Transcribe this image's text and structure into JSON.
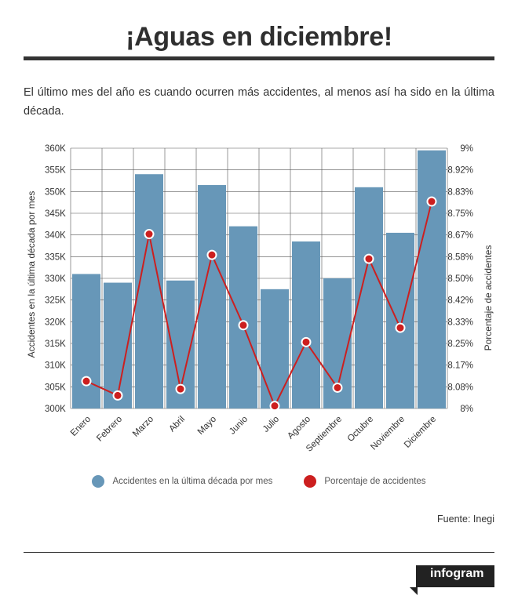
{
  "title": "¡Aguas en diciembre!",
  "subtitle": "El último mes del año es cuando ocurren más accidentes, al menos así ha sido en la última década.",
  "source": "Fuente: Inegi",
  "brand": "infogram",
  "colors": {
    "bar": "#6797b8",
    "line": "#cc1f1f",
    "grid": "#555555",
    "text": "#333333"
  },
  "chart_data": {
    "type": "bar",
    "categories": [
      "Enero",
      "Febrero",
      "Marzo",
      "Abril",
      "Mayo",
      "Junio",
      "Julio",
      "Agosto",
      "Septiembre",
      "Octubre",
      "Noviembre",
      "Diciembre"
    ],
    "series": [
      {
        "name": "Accidentes en la última década por mes",
        "type": "bar",
        "axis": "left",
        "values": [
          331000,
          329000,
          354000,
          329500,
          351500,
          342000,
          327500,
          338500,
          330000,
          351000,
          340500,
          359500
        ]
      },
      {
        "name": "Porcentaje de accidentes",
        "type": "line",
        "axis": "right",
        "values": [
          8.105,
          8.05,
          8.67,
          8.075,
          8.59,
          8.32,
          8.01,
          8.255,
          8.08,
          8.575,
          8.31,
          8.795
        ]
      }
    ],
    "ylabel_left": "Accidentes en la última década por mes",
    "ylabel_right": "Porcentaje de accidentes",
    "ylim_left": [
      300000,
      360000
    ],
    "ylim_right": [
      8,
      9
    ],
    "yticks_left": [
      "300K",
      "305K",
      "310K",
      "315K",
      "320K",
      "325K",
      "330K",
      "335K",
      "340K",
      "345K",
      "350K",
      "355K",
      "360K"
    ],
    "yticks_right": [
      "8%",
      "8.08%",
      "8.17%",
      "8.25%",
      "8.33%",
      "8.42%",
      "8.50%",
      "8.58%",
      "8.67%",
      "8.75%",
      "8.83%",
      "8.92%",
      "9%"
    ],
    "grid": true,
    "legend": "bottom"
  }
}
